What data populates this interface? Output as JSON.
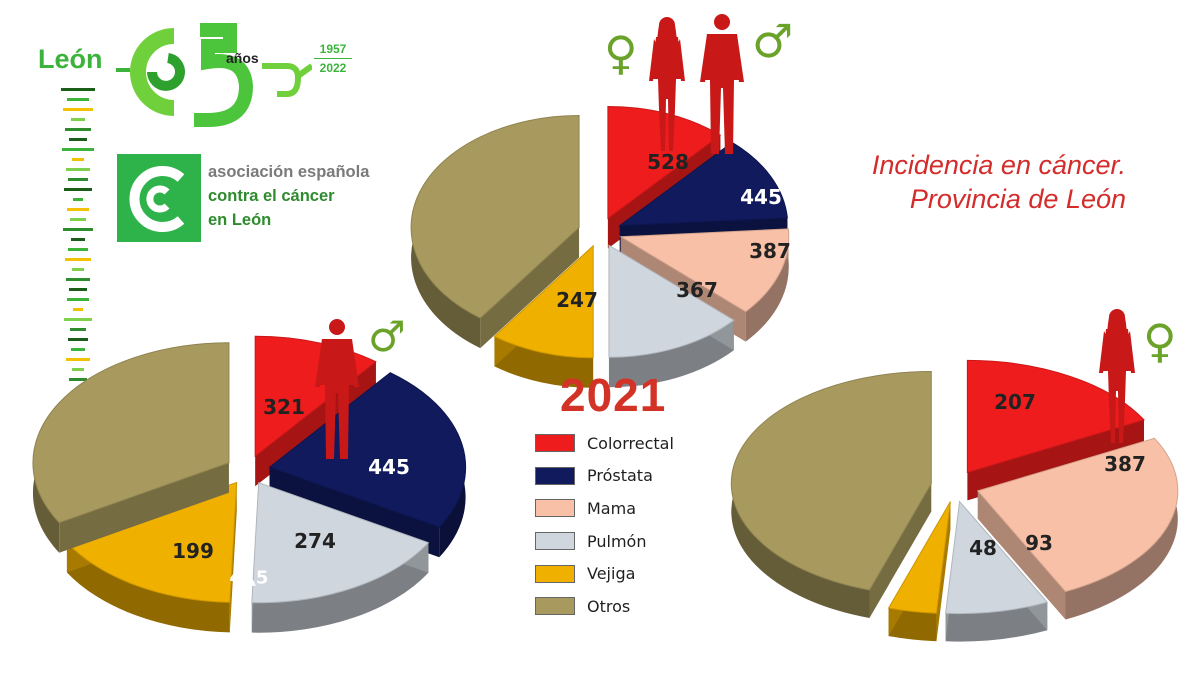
{
  "logo": {
    "city": "León",
    "number": "65",
    "years_word": "años",
    "year_start": "1957",
    "year_end": "2022",
    "org_line1": "asociación española",
    "org_line2": "contra el cáncer",
    "org_line3": "en León"
  },
  "title_line1": "Incidencia en cáncer.",
  "title_line2": "Provincia de León",
  "year": "2021",
  "colors": {
    "Colorrectal": "#ee1c1c",
    "Próstata": "#101a5c",
    "Mama": "#f8c0a6",
    "Pulmón": "#cfd6de",
    "Vejiga": "#f0b000",
    "Otros": "#a89a5e",
    "brand_green": "#3cb43c",
    "title_red": "#d42b2b",
    "silhouette_red": "#c81818"
  },
  "legend": [
    "Colorrectal",
    "Próstata",
    "Mama",
    "Pulmón",
    "Vejiga",
    "Otros"
  ],
  "icons": [
    "female-symbol-icon",
    "male-symbol-icon",
    "woman-silhouette-icon",
    "man-silhouette-icon"
  ],
  "chart_data": [
    {
      "type": "pie",
      "group": "total",
      "gender_symbols": [
        "♀",
        "♂"
      ],
      "slices": [
        {
          "category": "Colorrectal",
          "value": 528,
          "label": "528"
        },
        {
          "category": "Próstata",
          "value": 445,
          "label": "445"
        },
        {
          "category": "Mama",
          "value": 387,
          "label": "387"
        },
        {
          "category": "Pulmón",
          "value": 367,
          "label": "367"
        },
        {
          "category": "Vejiga",
          "value": 247,
          "label": "247"
        },
        {
          "category": "Otros",
          "value": null,
          "label": ""
        }
      ]
    },
    {
      "type": "pie",
      "group": "hombres",
      "gender_symbols": [
        "♂"
      ],
      "slices": [
        {
          "category": "Colorrectal",
          "value": 321,
          "label": "321"
        },
        {
          "category": "Próstata",
          "value": 445,
          "label": "445"
        },
        {
          "category": "Pulmón",
          "value": 274,
          "label": "274"
        },
        {
          "category": "Vejiga",
          "value": 199,
          "label": "199"
        },
        {
          "category": "Otros",
          "value": null,
          "label": ""
        }
      ],
      "stray_label": "4▲5"
    },
    {
      "type": "pie",
      "group": "mujeres",
      "gender_symbols": [
        "♀"
      ],
      "slices": [
        {
          "category": "Colorrectal",
          "value": 207,
          "label": "207"
        },
        {
          "category": "Mama",
          "value": 387,
          "label": "387"
        },
        {
          "category": "Pulmón",
          "value": 93,
          "label": "93"
        },
        {
          "category": "Vejiga",
          "value": 48,
          "label": "48"
        },
        {
          "category": "Otros",
          "value": null,
          "label": ""
        }
      ]
    }
  ]
}
